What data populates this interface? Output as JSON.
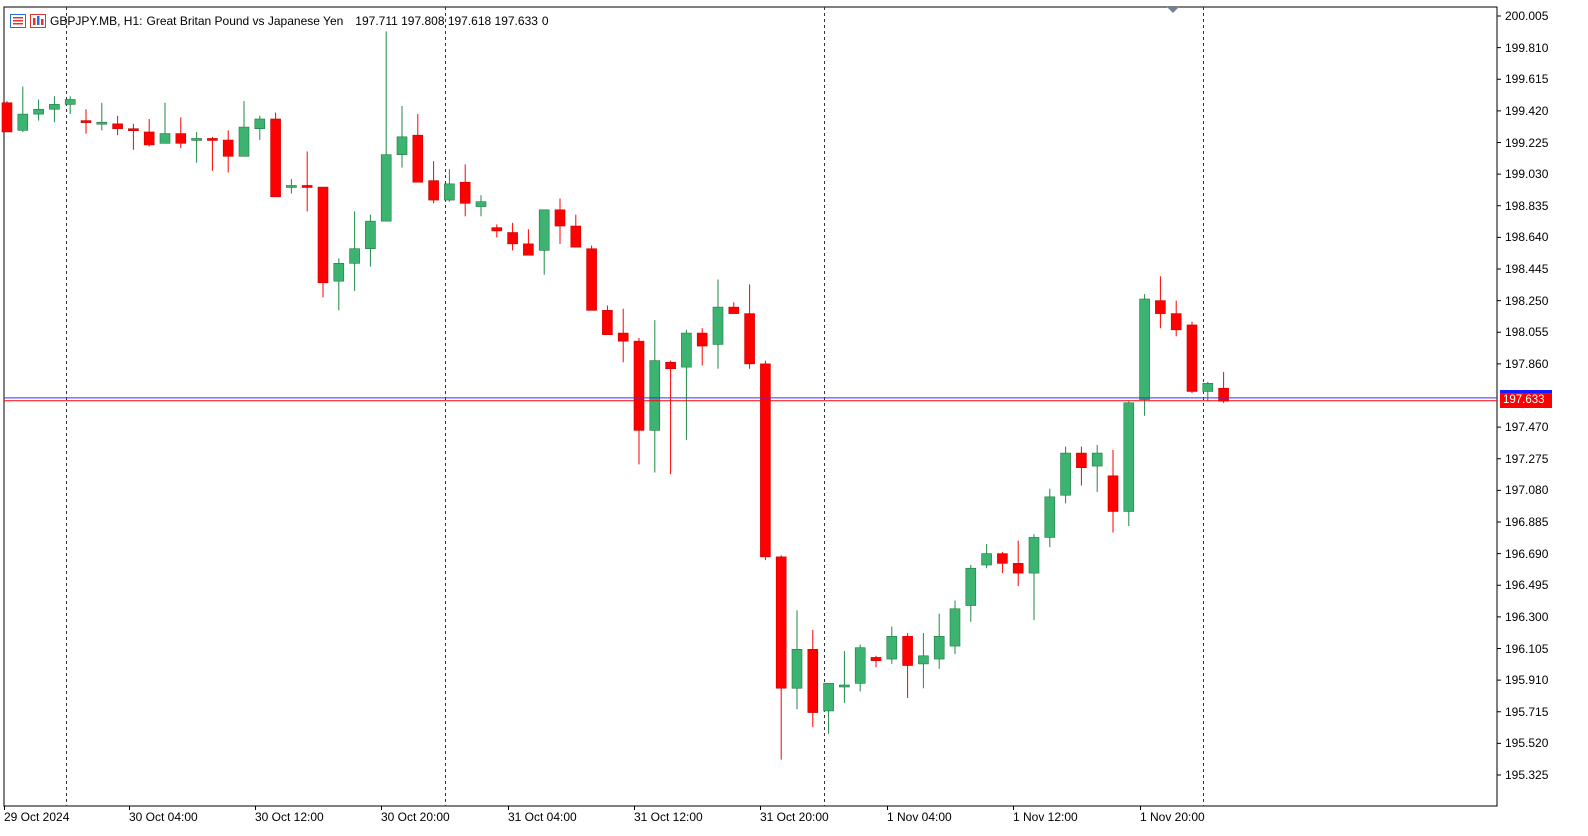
{
  "header": {
    "symbol": "GBPJPY.MB, H1:",
    "description": "Great Britan Pound vs Japanese Yen",
    "ohlc": "197.711 197.808 197.618 197.633",
    "volume": "0"
  },
  "current_price_label": "197.633",
  "colors": {
    "bull": "#3cb371",
    "bear": "#ff0000",
    "ask_line": "#3333ff",
    "bid_line": "#ff0000",
    "axis": "#000000",
    "separator": "#000000"
  },
  "icons": [
    "menu-icon",
    "chart-icon",
    "scroll-marker-icon"
  ],
  "chart_data": {
    "type": "candlestick",
    "timeframe": "H1",
    "y_ticks": [
      "200.005",
      "199.810",
      "199.615",
      "199.420",
      "199.225",
      "199.030",
      "198.835",
      "198.640",
      "198.445",
      "198.250",
      "198.055",
      "197.860",
      "197.470",
      "197.275",
      "197.080",
      "196.885",
      "196.690",
      "196.495",
      "196.300",
      "196.105",
      "195.910",
      "195.715",
      "195.520",
      "195.325"
    ],
    "x_ticks": [
      "29 Oct 2024",
      "30 Oct 04:00",
      "30 Oct 12:00",
      "30 Oct 20:00",
      "31 Oct 04:00",
      "31 Oct 12:00",
      "31 Oct 20:00",
      "1 Nov 04:00",
      "1 Nov 12:00",
      "1 Nov 20:00"
    ],
    "ylim": [
      195.21,
      200.07
    ],
    "bid": 197.633,
    "ask": 197.65,
    "candles": [
      [
        199.47,
        199.48,
        199.29,
        199.29
      ],
      [
        199.3,
        199.57,
        199.29,
        199.4
      ],
      [
        199.4,
        199.49,
        199.36,
        199.43
      ],
      [
        199.43,
        199.51,
        199.35,
        199.46
      ],
      [
        199.46,
        199.51,
        199.4,
        199.49
      ],
      [
        199.36,
        199.43,
        199.28,
        199.35
      ],
      [
        199.35,
        199.47,
        199.3,
        199.35
      ],
      [
        199.34,
        199.39,
        199.27,
        199.31
      ],
      [
        199.31,
        199.34,
        199.18,
        199.3
      ],
      [
        199.29,
        199.37,
        199.2,
        199.21
      ],
      [
        199.22,
        199.47,
        199.22,
        199.28
      ],
      [
        199.28,
        199.38,
        199.19,
        199.22
      ],
      [
        199.24,
        199.29,
        199.1,
        199.25
      ],
      [
        199.25,
        199.26,
        199.05,
        199.24
      ],
      [
        199.24,
        199.3,
        199.04,
        199.14
      ],
      [
        199.14,
        199.48,
        199.14,
        199.32
      ],
      [
        199.31,
        199.39,
        199.24,
        199.37
      ],
      [
        199.37,
        199.41,
        198.91,
        198.89
      ],
      [
        198.96,
        199.0,
        198.91,
        198.96
      ],
      [
        198.96,
        199.17,
        198.8,
        198.95
      ],
      [
        198.95,
        198.95,
        198.27,
        198.36
      ],
      [
        198.37,
        198.51,
        198.19,
        198.48
      ],
      [
        198.48,
        198.8,
        198.31,
        198.57
      ],
      [
        198.57,
        198.78,
        198.46,
        198.74
      ],
      [
        198.74,
        199.91,
        198.74,
        199.15
      ],
      [
        199.15,
        199.45,
        199.07,
        199.26
      ],
      [
        199.27,
        199.4,
        198.99,
        198.98
      ],
      [
        198.99,
        199.11,
        198.85,
        198.87
      ],
      [
        198.87,
        199.06,
        198.86,
        198.97
      ],
      [
        198.98,
        199.09,
        198.77,
        198.85
      ],
      [
        198.83,
        198.9,
        198.77,
        198.86
      ],
      [
        198.7,
        198.72,
        198.64,
        198.68
      ],
      [
        198.67,
        198.73,
        198.56,
        198.6
      ],
      [
        198.6,
        198.69,
        198.53,
        198.53
      ],
      [
        198.56,
        198.77,
        198.41,
        198.81
      ],
      [
        198.81,
        198.88,
        198.6,
        198.71
      ],
      [
        198.71,
        198.78,
        198.58,
        198.58
      ],
      [
        198.57,
        198.59,
        198.22,
        198.19
      ],
      [
        198.19,
        198.22,
        198.06,
        198.04
      ],
      [
        198.05,
        198.2,
        197.87,
        198.0
      ],
      [
        198.0,
        198.02,
        197.24,
        197.45
      ],
      [
        197.45,
        198.13,
        197.19,
        197.88
      ],
      [
        197.87,
        197.88,
        197.18,
        197.83
      ],
      [
        197.84,
        198.07,
        197.39,
        198.05
      ],
      [
        198.05,
        198.08,
        197.85,
        197.97
      ],
      [
        197.98,
        198.38,
        197.83,
        198.21
      ],
      [
        198.21,
        198.24,
        198.18,
        198.17
      ],
      [
        198.17,
        198.35,
        197.83,
        197.86
      ],
      [
        197.86,
        197.88,
        196.65,
        196.67
      ],
      [
        196.67,
        196.68,
        195.42,
        195.86
      ],
      [
        195.86,
        196.34,
        195.73,
        196.1
      ],
      [
        196.1,
        196.22,
        195.62,
        195.71
      ],
      [
        195.72,
        195.88,
        195.58,
        195.89
      ],
      [
        195.87,
        196.09,
        195.77,
        195.88
      ],
      [
        195.89,
        196.13,
        195.84,
        196.11
      ],
      [
        196.05,
        196.06,
        195.99,
        196.03
      ],
      [
        196.04,
        196.24,
        196.01,
        196.18
      ],
      [
        196.18,
        196.2,
        195.8,
        196.0
      ],
      [
        196.01,
        196.2,
        195.86,
        196.06
      ],
      [
        196.04,
        196.32,
        195.98,
        196.18
      ],
      [
        196.12,
        196.4,
        196.07,
        196.35
      ],
      [
        196.37,
        196.62,
        196.27,
        196.6
      ],
      [
        196.62,
        196.75,
        196.6,
        196.69
      ],
      [
        196.69,
        196.7,
        196.57,
        196.63
      ],
      [
        196.63,
        196.77,
        196.49,
        196.57
      ],
      [
        196.57,
        196.81,
        196.28,
        196.79
      ],
      [
        196.79,
        197.09,
        196.73,
        197.04
      ],
      [
        197.05,
        197.35,
        197.0,
        197.31
      ],
      [
        197.31,
        197.35,
        197.11,
        197.22
      ],
      [
        197.23,
        197.36,
        197.07,
        197.31
      ],
      [
        197.17,
        197.33,
        196.82,
        196.95
      ],
      [
        196.95,
        197.63,
        196.86,
        197.62
      ],
      [
        197.64,
        198.29,
        197.54,
        198.26
      ],
      [
        198.25,
        198.4,
        198.08,
        198.17
      ],
      [
        198.17,
        198.25,
        198.03,
        198.07
      ],
      [
        198.1,
        198.12,
        197.68,
        197.69
      ],
      [
        197.69,
        197.75,
        197.63,
        197.74
      ],
      [
        197.71,
        197.81,
        197.62,
        197.63
      ]
    ]
  }
}
